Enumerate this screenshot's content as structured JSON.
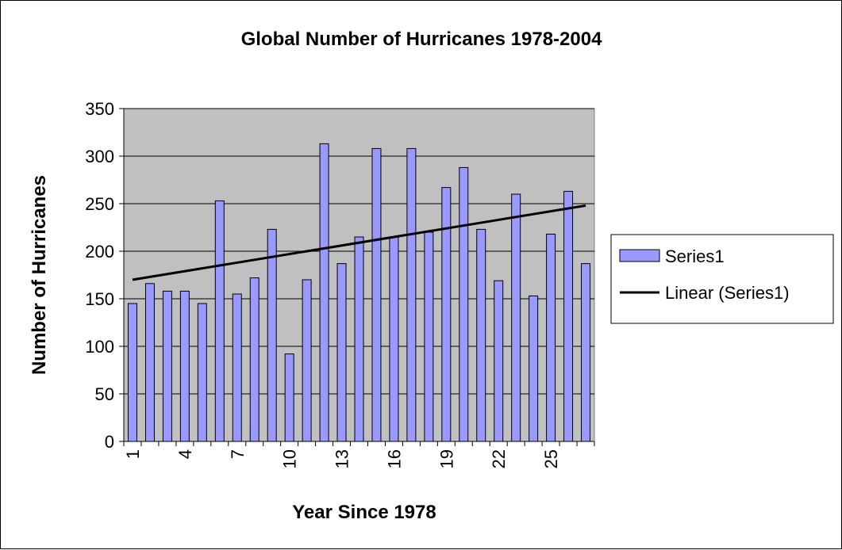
{
  "chart_data": {
    "type": "bar",
    "title": "Global Number of Hurricanes 1978-2004",
    "xlabel": "Year Since 1978",
    "ylabel": "Number of Hurricanes",
    "ylim": [
      0,
      350
    ],
    "yticks": [
      0,
      50,
      100,
      150,
      200,
      250,
      300,
      350
    ],
    "x": [
      1,
      2,
      3,
      4,
      5,
      6,
      7,
      8,
      9,
      10,
      11,
      12,
      13,
      14,
      15,
      16,
      17,
      18,
      19,
      20,
      21,
      22,
      23,
      24,
      25,
      26,
      27
    ],
    "xtick_labels": [
      "1",
      "4",
      "7",
      "10",
      "13",
      "16",
      "19",
      "22",
      "25"
    ],
    "series": [
      {
        "name": "Series1",
        "values": [
          145,
          166,
          158,
          158,
          145,
          253,
          155,
          172,
          223,
          92,
          170,
          313,
          187,
          215,
          308,
          215,
          308,
          220,
          267,
          288,
          223,
          169,
          260,
          153,
          218,
          263,
          187
        ],
        "color": "#9999ff"
      }
    ],
    "trendline": {
      "name": "Linear (Series1)",
      "start_value": 170,
      "end_value": 248,
      "color": "#000000"
    },
    "plot_background": "#c0c0c0",
    "grid": "horizontal",
    "legend_position": "right"
  }
}
